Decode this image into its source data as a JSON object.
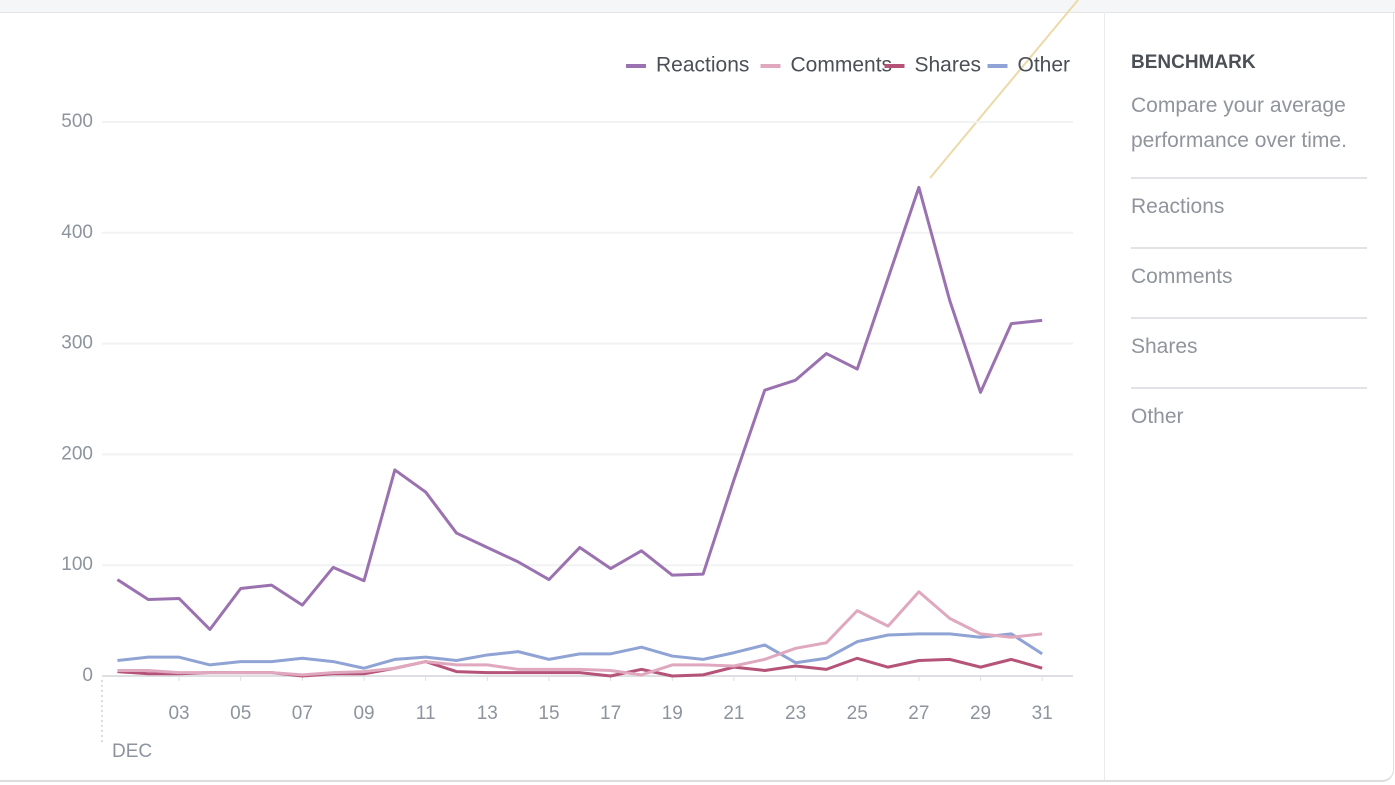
{
  "chart_data": {
    "type": "line",
    "xlabel": "DEC",
    "x": [
      1,
      2,
      3,
      4,
      5,
      6,
      7,
      8,
      9,
      10,
      11,
      12,
      13,
      14,
      15,
      16,
      17,
      18,
      19,
      20,
      21,
      22,
      23,
      24,
      25,
      26,
      27,
      28,
      29,
      30,
      31
    ],
    "series": [
      {
        "name": "Reactions",
        "color": "#9b72b0",
        "values": [
          87,
          69,
          70,
          42,
          79,
          82,
          64,
          98,
          86,
          186,
          166,
          129,
          116,
          103,
          87,
          116,
          97,
          113,
          91,
          92,
          177,
          258,
          267,
          291,
          277,
          359,
          441,
          339,
          256,
          318,
          321
        ]
      },
      {
        "name": "Comments",
        "color": "#e0a8be",
        "values": [
          5,
          5,
          3,
          3,
          3,
          3,
          1,
          3,
          4,
          7,
          13,
          10,
          10,
          6,
          6,
          6,
          5,
          1,
          10,
          10,
          9,
          15,
          25,
          30,
          59,
          45,
          76,
          52,
          38,
          35,
          38
        ]
      },
      {
        "name": "Shares",
        "color": "#b55478",
        "values": [
          4,
          2,
          2,
          3,
          3,
          3,
          0,
          2,
          2,
          7,
          13,
          4,
          3,
          3,
          3,
          3,
          0,
          6,
          0,
          1,
          8,
          5,
          9,
          6,
          16,
          8,
          14,
          15,
          8,
          15,
          7
        ]
      },
      {
        "name": "Other",
        "color": "#8fa3d4",
        "values": [
          14,
          17,
          17,
          10,
          13,
          13,
          16,
          13,
          7,
          15,
          17,
          14,
          19,
          22,
          15,
          20,
          20,
          26,
          18,
          15,
          21,
          28,
          12,
          16,
          31,
          37,
          38,
          38,
          35,
          38,
          20
        ]
      }
    ],
    "xlim": [
      0.5,
      32
    ],
    "xticks": [
      {
        "value": 3,
        "label": "03"
      },
      {
        "value": 5,
        "label": "05"
      },
      {
        "value": 7,
        "label": "07"
      },
      {
        "value": 9,
        "label": "09"
      },
      {
        "value": 11,
        "label": "11"
      },
      {
        "value": 13,
        "label": "13"
      },
      {
        "value": 15,
        "label": "15"
      },
      {
        "value": 17,
        "label": "17"
      },
      {
        "value": 19,
        "label": "19"
      },
      {
        "value": 21,
        "label": "21"
      },
      {
        "value": 23,
        "label": "23"
      },
      {
        "value": 25,
        "label": "25"
      },
      {
        "value": 27,
        "label": "27"
      },
      {
        "value": 29,
        "label": "29"
      },
      {
        "value": 31,
        "label": "31"
      }
    ],
    "ylim": [
      0,
      500
    ],
    "yticks": [
      0,
      100,
      200,
      300,
      400,
      500
    ],
    "grid": true
  },
  "benchmark": {
    "title": "BENCHMARK",
    "description": "Compare your average performance over time.",
    "items": [
      "Reactions",
      "Comments",
      "Shares",
      "Other"
    ]
  }
}
